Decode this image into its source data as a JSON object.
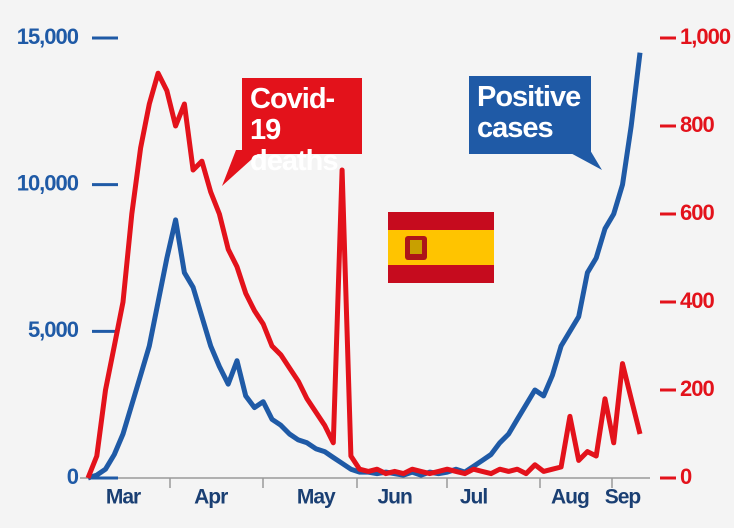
{
  "chart_data": {
    "type": "line",
    "categories": [
      null,
      null,
      null,
      null,
      "Mar",
      null,
      null,
      null,
      null,
      null,
      null,
      null,
      null,
      null,
      "Apr",
      null,
      null,
      null,
      null,
      null,
      null,
      null,
      null,
      null,
      null,
      null,
      "May",
      null,
      null,
      null,
      null,
      null,
      null,
      null,
      null,
      "Jun",
      null,
      null,
      null,
      null,
      null,
      null,
      null,
      null,
      "Jul",
      null,
      null,
      null,
      null,
      null,
      null,
      null,
      null,
      null,
      null,
      "Aug",
      null,
      null,
      null,
      null,
      null,
      "Sep",
      null,
      null
    ],
    "series": [
      {
        "name": "Positive cases",
        "color": "#1f5aa6",
        "axis": "y",
        "values": [
          0,
          100,
          300,
          800,
          1500,
          2500,
          3500,
          4500,
          6000,
          7500,
          8800,
          7000,
          6500,
          5500,
          4500,
          3800,
          3200,
          4000,
          2800,
          2400,
          2600,
          2000,
          1800,
          1500,
          1300,
          1200,
          1000,
          900,
          700,
          500,
          300,
          200,
          200,
          150,
          200,
          150,
          100,
          200,
          100,
          200,
          150,
          200,
          300,
          200,
          400,
          600,
          800,
          1200,
          1500,
          2000,
          2500,
          3000,
          2800,
          3500,
          4500,
          5000,
          5500,
          7000,
          7500,
          8500,
          9000,
          10000,
          12000,
          14500
        ]
      },
      {
        "name": "Covid-19 deaths",
        "color": "#e3121b",
        "axis": "y2",
        "values": [
          0,
          50,
          200,
          300,
          400,
          600,
          750,
          850,
          920,
          880,
          800,
          850,
          700,
          720,
          650,
          600,
          520,
          480,
          420,
          380,
          350,
          300,
          280,
          250,
          220,
          180,
          150,
          120,
          80,
          700,
          50,
          20,
          15,
          20,
          10,
          15,
          10,
          20,
          15,
          10,
          15,
          20,
          15,
          10,
          20,
          15,
          10,
          20,
          15,
          20,
          10,
          30,
          15,
          20,
          25,
          140,
          40,
          60,
          50,
          180,
          80,
          260,
          180,
          100
        ]
      }
    ],
    "ylim": [
      0,
      15000
    ],
    "yticks": [
      0,
      {
        "value": 5000,
        "label": "5,000"
      },
      {
        "value": 10000,
        "label": "10,000"
      },
      {
        "value": 15000,
        "label": "15,000"
      }
    ],
    "y2lim": [
      0,
      1000
    ],
    "y2ticks": [
      0,
      200,
      400,
      600,
      800,
      {
        "value": 1000,
        "label": "1,000"
      }
    ]
  }
}
